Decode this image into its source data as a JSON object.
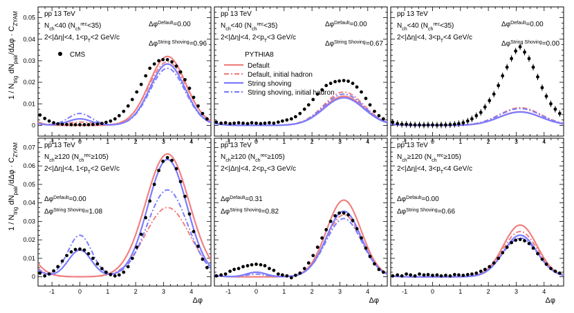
{
  "figure": {
    "xlabel": "Δφ",
    "ylabel": {
      "frac1": "1",
      "ntrig": "N",
      "ntrig_sub": "trig",
      "dn": "dN",
      "dn_sub": "pair",
      "ddphi": "dΔφ",
      "dot": "·",
      "c": "C",
      "c_sub": "ZYAM"
    },
    "legend": {
      "cms": "CMS",
      "pythia_header": "PYTHIA8",
      "default": "Default",
      "default_initial": "Default, initial hadron",
      "shoving": "String shoving",
      "shoving_initial": "String shoving, initial hadron"
    },
    "colors": {
      "default": "#f08080",
      "default_initial": "#f08080",
      "shoving": "#7b7bff",
      "shoving_initial": "#7b7bff",
      "cms": "#000000"
    }
  },
  "chart_data": [
    {
      "type": "line",
      "row": 0,
      "col": 0,
      "texts": [
        "pp 13 TeV",
        "Nch<40 (Nch_rec<35)",
        "2<|Δη|<4, 1<pT<2 GeV/c"
      ],
      "dphi_default": "Δφmin(Default)=0.00",
      "dphi_shoving": "Δφmin(String Shoving)=0.96",
      "xlim": [
        -1.5,
        4.7
      ],
      "ylim": [
        -0.005,
        0.075
      ],
      "xticks": [
        -1,
        0,
        1,
        2,
        3,
        4
      ],
      "yticks": [
        0,
        0.01,
        0.02,
        0.03,
        0.04,
        0.05,
        0.06,
        0.07
      ],
      "cms_x": [
        -1.43,
        -1.26,
        -1.1,
        -0.94,
        -0.79,
        -0.63,
        -0.47,
        -0.31,
        -0.16,
        0,
        0.16,
        0.31,
        0.47,
        0.63,
        0.79,
        0.94,
        1.1,
        1.26,
        1.41,
        1.57,
        1.73,
        1.88,
        2.04,
        2.2,
        2.36,
        2.51,
        2.67,
        2.83,
        2.98,
        3.14,
        3.3,
        3.46,
        3.61,
        3.77,
        3.93,
        4.08,
        4.24,
        4.4,
        4.56
      ],
      "cms_y": [
        0.0048,
        0.0032,
        0.002,
        0.0012,
        0.0007,
        0.0005,
        0.0004,
        0.0003,
        0.0003,
        0.0003,
        0.0003,
        0.0003,
        0.0004,
        0.0006,
        0.0009,
        0.0014,
        0.002,
        0.003,
        0.0045,
        0.0065,
        0.009,
        0.012,
        0.0155,
        0.019,
        0.023,
        0.0265,
        0.0285,
        0.03,
        0.0305,
        0.0305,
        0.0295,
        0.0275,
        0.0248,
        0.0212,
        0.0172,
        0.013,
        0.009,
        0.0055,
        0.003
      ],
      "series": [
        {
          "name": "Default",
          "style": "solid",
          "away_amp": 0.032,
          "away_sigma": 0.66,
          "near_amp": 0,
          "near_sigma": 0.45,
          "base": 0
        },
        {
          "name": "Default, initial hadron",
          "style": "dashdot",
          "away_amp": 0.0295,
          "away_sigma": 0.68,
          "near_amp": 0.0015,
          "near_sigma": 0.5,
          "base": 0
        },
        {
          "name": "String shoving",
          "style": "solid",
          "away_amp": 0.0285,
          "away_sigma": 0.63,
          "near_amp": 0.003,
          "near_sigma": 0.42,
          "base": 0.0
        },
        {
          "name": "String shoving, initial hadron",
          "style": "dashdot",
          "away_amp": 0.0265,
          "away_sigma": 0.63,
          "near_amp": 0.0055,
          "near_sigma": 0.42,
          "base": 0
        }
      ]
    },
    {
      "type": "line",
      "row": 0,
      "col": 1,
      "texts": [
        "pp 13 TeV",
        "Nch<40 (Nch_rec<35)",
        "2<|Δη|<4, 2<pT<3 GeV/c"
      ],
      "dphi_default": "Δφmin(Default)=0.00",
      "dphi_shoving": "Δφmin(String Shoving)=0.67",
      "xlim": [
        -1.5,
        4.7
      ],
      "ylim": [
        -0.005,
        0.075
      ],
      "xticks": [
        -1,
        0,
        1,
        2,
        3,
        4
      ],
      "yticks": [
        0,
        0.01,
        0.02,
        0.03,
        0.04,
        0.05,
        0.06,
        0.07
      ],
      "cms_x": [
        -1.43,
        -1.26,
        -1.1,
        -0.94,
        -0.79,
        -0.63,
        -0.47,
        -0.31,
        -0.16,
        0,
        0.16,
        0.31,
        0.47,
        0.63,
        0.79,
        0.94,
        1.1,
        1.26,
        1.41,
        1.57,
        1.73,
        1.88,
        2.04,
        2.2,
        2.36,
        2.51,
        2.67,
        2.83,
        2.98,
        3.14,
        3.3,
        3.46,
        3.61,
        3.77,
        3.93,
        4.08,
        4.24,
        4.4,
        4.56
      ],
      "cms_y": [
        0.0015,
        0.001,
        0.0012,
        0.0008,
        0.001,
        0.0012,
        0.001,
        0.0008,
        0.0012,
        0.001,
        0.0008,
        0.001,
        0.0012,
        0.001,
        0.0015,
        0.002,
        0.0025,
        0.003,
        0.004,
        0.0055,
        0.0075,
        0.0095,
        0.012,
        0.0145,
        0.0165,
        0.0185,
        0.0195,
        0.0203,
        0.0206,
        0.0208,
        0.0205,
        0.0195,
        0.0178,
        0.0155,
        0.0125,
        0.0095,
        0.0065,
        0.0045,
        0.003
      ],
      "series": [
        {
          "name": "Default",
          "style": "solid",
          "away_amp": 0.0135,
          "away_sigma": 0.72,
          "near_amp": 0,
          "near_sigma": 0.45,
          "base": 0
        },
        {
          "name": "Default, initial hadron",
          "style": "dashdot",
          "away_amp": 0.0155,
          "away_sigma": 0.72,
          "near_amp": 0,
          "near_sigma": 0.45,
          "base": 0
        },
        {
          "name": "String shoving",
          "style": "solid",
          "away_amp": 0.0128,
          "away_sigma": 0.72,
          "near_amp": 0,
          "near_sigma": 0.45,
          "base": 0
        },
        {
          "name": "String shoving, initial hadron",
          "style": "dashdot",
          "away_amp": 0.0145,
          "away_sigma": 0.72,
          "near_amp": 0,
          "near_sigma": 0.45,
          "base": 0
        }
      ]
    },
    {
      "type": "line",
      "row": 0,
      "col": 2,
      "texts": [
        "pp 13 TeV",
        "Nch<40 (Nch_rec<35)",
        "2<|Δη|<4, 3<pT<4 GeV/c"
      ],
      "dphi_default": "Δφmin(Default)=0.00",
      "dphi_shoving": "Δφmin(String Shoving)=0.00",
      "xlim": [
        -1.5,
        4.7
      ],
      "ylim": [
        -0.005,
        0.075
      ],
      "xticks": [
        -1,
        0,
        1,
        2,
        3,
        4
      ],
      "yticks": [
        0,
        0.01,
        0.02,
        0.03,
        0.04,
        0.05,
        0.06,
        0.07
      ],
      "cms_x": [
        -1.43,
        -1.26,
        -1.1,
        -0.94,
        -0.79,
        -0.63,
        -0.47,
        -0.31,
        -0.16,
        0,
        0.16,
        0.31,
        0.47,
        0.63,
        0.79,
        0.94,
        1.1,
        1.26,
        1.41,
        1.57,
        1.73,
        1.88,
        2.04,
        2.2,
        2.36,
        2.51,
        2.67,
        2.83,
        2.98,
        3.14,
        3.3,
        3.46,
        3.61,
        3.77,
        3.93,
        4.08,
        4.24,
        4.4,
        4.56
      ],
      "cms_y": [
        0.0015,
        0.0008,
        0.0005,
        0.0005,
        0.0003,
        0.0002,
        0.0002,
        0.0001,
        0.0002,
        0.0002,
        0.0001,
        0.0002,
        0.0002,
        0.0003,
        0.0005,
        0.0008,
        0.0012,
        0.002,
        0.003,
        0.0045,
        0.006,
        0.0085,
        0.0115,
        0.0145,
        0.0185,
        0.023,
        0.027,
        0.031,
        0.0345,
        0.0365,
        0.034,
        0.031,
        0.027,
        0.0225,
        0.0175,
        0.0135,
        0.01,
        0.0075,
        0.0055
      ],
      "series": [
        {
          "name": "Default",
          "style": "solid",
          "away_amp": 0.0063,
          "away_sigma": 0.75,
          "near_amp": 0,
          "near_sigma": 0.45,
          "base": 0
        },
        {
          "name": "Default, initial hadron",
          "style": "dashdot",
          "away_amp": 0.0082,
          "away_sigma": 0.75,
          "near_amp": 0,
          "near_sigma": 0.45,
          "base": 0
        },
        {
          "name": "String shoving",
          "style": "solid",
          "away_amp": 0.0062,
          "away_sigma": 0.75,
          "near_amp": 0,
          "near_sigma": 0.45,
          "base": 0
        },
        {
          "name": "String shoving, initial hadron",
          "style": "dashdot",
          "away_amp": 0.0078,
          "away_sigma": 0.75,
          "near_amp": 0,
          "near_sigma": 0.45,
          "base": 0
        }
      ]
    },
    {
      "type": "line",
      "row": 1,
      "col": 0,
      "texts": [
        "pp 13 TeV",
        "Nch≥120 (Nch_rec≥105)",
        "2<|Δη|<4, 1<pT<2 GeV/c"
      ],
      "dphi_default": "Δφmin(Default)=0.00",
      "dphi_shoving": "Δφmin(String Shoving)=1.08",
      "xlim": [
        -1.5,
        4.7
      ],
      "ylim": [
        -0.005,
        0.075
      ],
      "xticks": [
        -1,
        0,
        1,
        2,
        3,
        4
      ],
      "yticks": [
        0,
        0.01,
        0.02,
        0.03,
        0.04,
        0.05,
        0.06,
        0.07
      ],
      "cms_x": [
        -1.43,
        -1.26,
        -1.1,
        -0.94,
        -0.79,
        -0.63,
        -0.47,
        -0.31,
        -0.16,
        0,
        0.16,
        0.31,
        0.47,
        0.63,
        0.79,
        0.94,
        1.1,
        1.26,
        1.41,
        1.57,
        1.73,
        1.88,
        2.04,
        2.2,
        2.36,
        2.51,
        2.67,
        2.83,
        2.98,
        3.14,
        3.3,
        3.46,
        3.61,
        3.77,
        3.93,
        4.08,
        4.24,
        4.4,
        4.56
      ],
      "cms_y": [
        0.002,
        0.0005,
        0.0015,
        0.0032,
        0.0055,
        0.0085,
        0.0115,
        0.0135,
        0.0148,
        0.015,
        0.0145,
        0.0125,
        0.01,
        0.007,
        0.0045,
        0.0025,
        0.0012,
        0.0005,
        0.001,
        0.0025,
        0.0055,
        0.01,
        0.016,
        0.023,
        0.032,
        0.041,
        0.05,
        0.0575,
        0.0625,
        0.0645,
        0.063,
        0.0585,
        0.0515,
        0.0435,
        0.034,
        0.0245,
        0.0165,
        0.0095,
        0.005
      ],
      "series": [
        {
          "name": "Default",
          "style": "solid",
          "away_amp": 0.0665,
          "away_sigma": 0.78,
          "near_amp": 0,
          "near_sigma": 0.45,
          "base": 0
        },
        {
          "name": "Default, initial hadron",
          "style": "dashdot",
          "away_amp": 0.0375,
          "away_sigma": 0.8,
          "near_amp": 0,
          "near_sigma": 0.45,
          "base": 0
        },
        {
          "name": "String shoving",
          "style": "solid",
          "away_amp": 0.0635,
          "away_sigma": 0.7,
          "near_amp": 0.0145,
          "near_sigma": 0.42,
          "base": 0
        },
        {
          "name": "String shoving, initial hadron",
          "style": "dashdot",
          "away_amp": 0.047,
          "away_sigma": 0.72,
          "near_amp": 0.0225,
          "near_sigma": 0.43,
          "base": 0
        }
      ]
    },
    {
      "type": "line",
      "row": 1,
      "col": 1,
      "texts": [
        "pp 13 TeV",
        "Nch≥120 (Nch_rec≥105)",
        "2<|Δη|<4, 2<pT<3 GeV/c"
      ],
      "dphi_default": "Δφmin(Default)=0.31",
      "dphi_shoving": "Δφmin(String Shoving)=0.82",
      "xlim": [
        -1.5,
        4.7
      ],
      "ylim": [
        -0.005,
        0.075
      ],
      "xticks": [
        -1,
        0,
        1,
        2,
        3,
        4
      ],
      "yticks": [
        0,
        0.01,
        0.02,
        0.03,
        0.04,
        0.05,
        0.06,
        0.07
      ],
      "cms_x": [
        -1.43,
        -1.26,
        -1.1,
        -0.94,
        -0.79,
        -0.63,
        -0.47,
        -0.31,
        -0.16,
        0,
        0.16,
        0.31,
        0.47,
        0.63,
        0.79,
        0.94,
        1.1,
        1.26,
        1.41,
        1.57,
        1.73,
        1.88,
        2.04,
        2.2,
        2.36,
        2.51,
        2.67,
        2.83,
        2.98,
        3.14,
        3.3,
        3.46,
        3.61,
        3.77,
        3.93,
        4.08,
        4.24,
        4.4,
        4.56
      ],
      "cms_y": [
        0.0005,
        0.001,
        0.0015,
        0.003,
        0.004,
        0.0045,
        0.0055,
        0.006,
        0.0065,
        0.0068,
        0.0065,
        0.006,
        0.0045,
        0.0035,
        0.0015,
        0.001,
        0.0005,
        -0.0005,
        0.0008,
        0.002,
        0.0045,
        0.0075,
        0.0115,
        0.016,
        0.021,
        0.0255,
        0.03,
        0.033,
        0.0345,
        0.0345,
        0.0335,
        0.0305,
        0.026,
        0.021,
        0.0155,
        0.011,
        0.007,
        0.004,
        0.0025
      ],
      "series": [
        {
          "name": "Default",
          "style": "solid",
          "away_amp": 0.0415,
          "away_sigma": 0.62,
          "near_amp": 0,
          "near_sigma": 0.45,
          "base": 0
        },
        {
          "name": "Default, initial hadron",
          "style": "dashdot",
          "away_amp": 0.0335,
          "away_sigma": 0.64,
          "near_amp": 0,
          "near_sigma": 0.45,
          "base": 0
        },
        {
          "name": "String shoving",
          "style": "solid",
          "away_amp": 0.0355,
          "away_sigma": 0.62,
          "near_amp": 0.0025,
          "near_sigma": 0.35,
          "base": 0
        },
        {
          "name": "String shoving, initial hadron",
          "style": "dashdot",
          "away_amp": 0.0315,
          "away_sigma": 0.64,
          "near_amp": 0.0015,
          "near_sigma": 0.35,
          "base": 0
        }
      ]
    },
    {
      "type": "line",
      "row": 1,
      "col": 2,
      "texts": [
        "pp 13 TeV",
        "Nch≥120 (Nch_rec≥105)",
        "2<|Δη|<4, 3<pT<4 GeV/c"
      ],
      "dphi_default": "Δφmin(Default)=0.00",
      "dphi_shoving": "Δφmin(String Shoving)=0.66",
      "xlim": [
        -1.5,
        4.7
      ],
      "ylim": [
        -0.005,
        0.075
      ],
      "xticks": [
        -1,
        0,
        1,
        2,
        3,
        4
      ],
      "yticks": [
        0,
        0.01,
        0.02,
        0.03,
        0.04,
        0.05,
        0.06,
        0.07
      ],
      "cms_x": [
        -1.43,
        -1.26,
        -1.1,
        -0.94,
        -0.79,
        -0.63,
        -0.47,
        -0.31,
        -0.16,
        0,
        0.16,
        0.31,
        0.47,
        0.63,
        0.79,
        0.94,
        1.1,
        1.26,
        1.41,
        1.57,
        1.73,
        1.88,
        2.04,
        2.2,
        2.36,
        2.51,
        2.67,
        2.83,
        2.98,
        3.14,
        3.3,
        3.46,
        3.61,
        3.77,
        3.93,
        4.08,
        4.24,
        4.4,
        4.56
      ],
      "cms_y": [
        0.0005,
        0.001,
        0.0005,
        0.0015,
        0.001,
        0.0005,
        0.0015,
        0.001,
        0.0012,
        0.0008,
        0.001,
        0.0005,
        0.0008,
        0.0005,
        0.0012,
        0.001,
        0.0008,
        0.0012,
        0.0015,
        0.002,
        0.003,
        0.004,
        0.0055,
        0.0075,
        0.01,
        0.013,
        0.016,
        0.0185,
        0.0198,
        0.0202,
        0.0195,
        0.018,
        0.0155,
        0.0125,
        0.0095,
        0.0068,
        0.0045,
        0.003,
        0.002
      ],
      "series": [
        {
          "name": "Default",
          "style": "solid",
          "away_amp": 0.028,
          "away_sigma": 0.6,
          "near_amp": 0,
          "near_sigma": 0.45,
          "base": 0
        },
        {
          "name": "Default, initial hadron",
          "style": "dashdot",
          "away_amp": 0.0245,
          "away_sigma": 0.62,
          "near_amp": 0,
          "near_sigma": 0.45,
          "base": 0
        },
        {
          "name": "String shoving",
          "style": "solid",
          "away_amp": 0.0225,
          "away_sigma": 0.6,
          "near_amp": 0,
          "near_sigma": 0.45,
          "base": 0
        },
        {
          "name": "String shoving, initial hadron",
          "style": "dashdot",
          "away_amp": 0.021,
          "away_sigma": 0.62,
          "near_amp": 0,
          "near_sigma": 0.45,
          "base": 0
        }
      ]
    }
  ]
}
